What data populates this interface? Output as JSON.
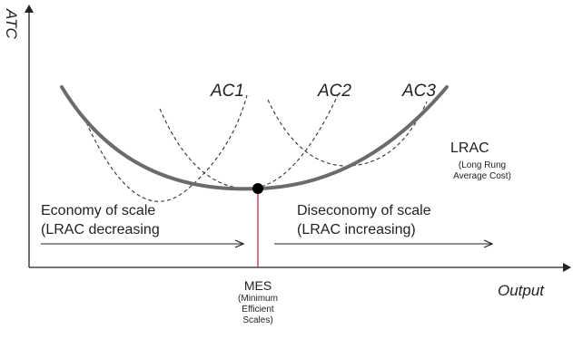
{
  "axes": {
    "y_label": "ATC",
    "x_label": "Output"
  },
  "curves": {
    "ac1": "AC1",
    "ac2": "AC2",
    "ac3": "AC3",
    "lrac": "LRAC",
    "lrac_sub_1": "(Long Rung",
    "lrac_sub_2": "Average Cost)"
  },
  "regions": {
    "economy_line1": "Economy of scale",
    "economy_line2": "(LRAC decreasing",
    "diseconomy_line1": "Diseconomy of scale",
    "diseconomy_line2": "(LRAC increasing)"
  },
  "mes": {
    "label": "MES",
    "sub_1": "(Minimum",
    "sub_2": "Efficient",
    "sub_3": "Scales)"
  },
  "colors": {
    "axis": "#222222",
    "lrac_curve": "#6b6b6b",
    "ac_curves": "#333333",
    "mes_line": "#c0303a",
    "point": "#000000"
  }
}
